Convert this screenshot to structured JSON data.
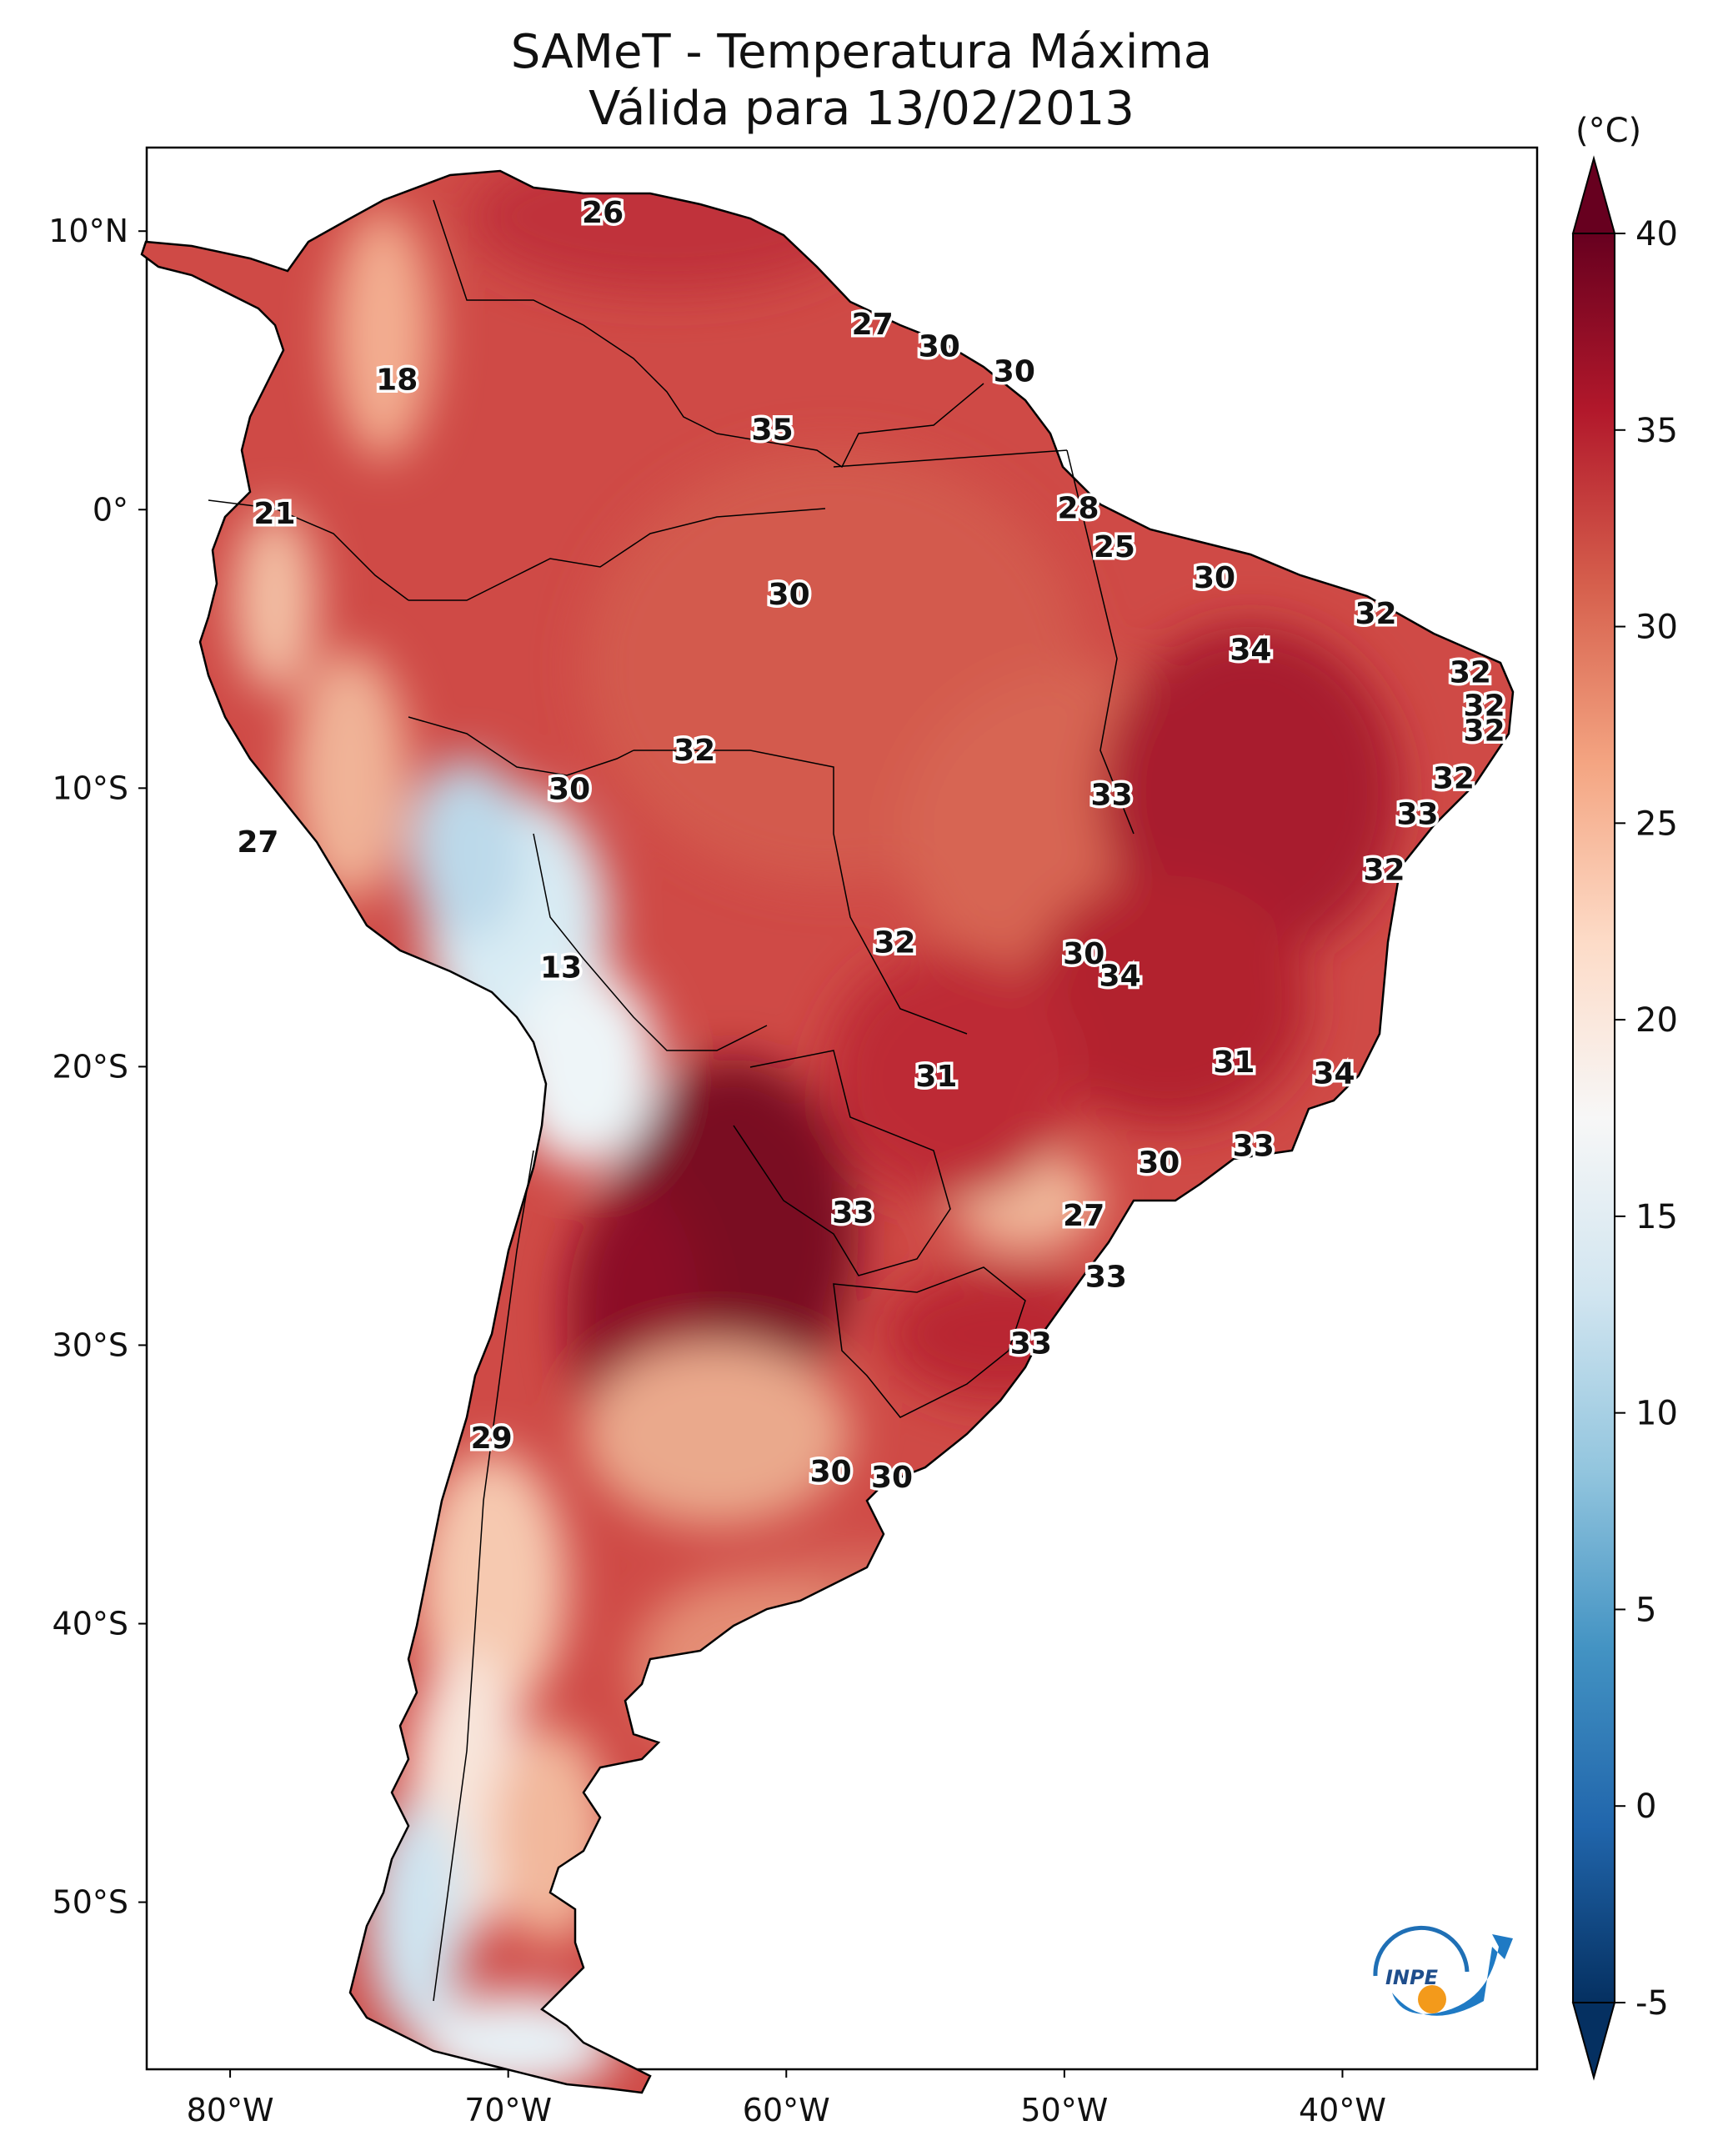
{
  "title": {
    "line1": "SAMeT - Temperatura Máxima",
    "line2": "Válida para 13/02/2013"
  },
  "colorbar": {
    "unit": "(°C)",
    "min": -5,
    "max": 40,
    "ticks": [
      "40",
      "35",
      "30",
      "25",
      "20",
      "15",
      "10",
      "5",
      "0",
      "-5"
    ],
    "colors": [
      "#67001f",
      "#b2182b",
      "#d6604d",
      "#f4a582",
      "#fddbc7",
      "#f7f7f7",
      "#d1e5f0",
      "#92c5de",
      "#4393c3",
      "#2166ac",
      "#053061"
    ]
  },
  "axes": {
    "lon_ticks": [
      "80°W",
      "70°W",
      "60°W",
      "50°W",
      "40°W"
    ],
    "lat_ticks": [
      "10°N",
      "0°",
      "10°S",
      "20°S",
      "30°S",
      "40°S",
      "50°S"
    ],
    "lon_range": [
      -83,
      -33
    ],
    "lat_range": [
      -56,
      13
    ]
  },
  "logo": {
    "text": "INPE",
    "icon": "inpe-logo"
  },
  "chart_data": {
    "type": "heatmap",
    "variable": "Temperatura Máxima",
    "unit": "°C",
    "labels": [
      {
        "lon": -66.6,
        "lat": 10.6,
        "value": "26"
      },
      {
        "lon": -74.0,
        "lat": 4.6,
        "value": "18"
      },
      {
        "lon": -78.4,
        "lat": -0.2,
        "value": "21"
      },
      {
        "lon": -56.9,
        "lat": 6.6,
        "value": "27"
      },
      {
        "lon": -54.5,
        "lat": 5.8,
        "value": "30"
      },
      {
        "lon": -51.8,
        "lat": 4.9,
        "value": "30"
      },
      {
        "lon": -60.5,
        "lat": 2.8,
        "value": "35"
      },
      {
        "lon": -49.5,
        "lat": 0.0,
        "value": "28"
      },
      {
        "lon": -48.2,
        "lat": -1.4,
        "value": "25"
      },
      {
        "lon": -44.6,
        "lat": -2.5,
        "value": "30"
      },
      {
        "lon": -59.9,
        "lat": -3.1,
        "value": "30"
      },
      {
        "lon": -38.8,
        "lat": -3.8,
        "value": "32"
      },
      {
        "lon": -43.3,
        "lat": -5.1,
        "value": "34"
      },
      {
        "lon": -35.4,
        "lat": -5.9,
        "value": "32"
      },
      {
        "lon": -34.9,
        "lat": -7.1,
        "value": "32"
      },
      {
        "lon": -34.9,
        "lat": -8.0,
        "value": "32"
      },
      {
        "lon": -36.0,
        "lat": -9.7,
        "value": "32"
      },
      {
        "lon": -37.3,
        "lat": -11.0,
        "value": "33"
      },
      {
        "lon": -63.3,
        "lat": -8.7,
        "value": "32"
      },
      {
        "lon": -67.8,
        "lat": -10.1,
        "value": "30"
      },
      {
        "lon": -48.3,
        "lat": -10.3,
        "value": "33"
      },
      {
        "lon": -79.0,
        "lat": -12.0,
        "value": "27"
      },
      {
        "lon": -38.5,
        "lat": -13.0,
        "value": "32"
      },
      {
        "lon": -68.1,
        "lat": -16.5,
        "value": "13"
      },
      {
        "lon": -56.1,
        "lat": -15.6,
        "value": "32"
      },
      {
        "lon": -49.3,
        "lat": -16.0,
        "value": "30"
      },
      {
        "lon": -48.0,
        "lat": -16.8,
        "value": "34"
      },
      {
        "lon": -54.6,
        "lat": -20.4,
        "value": "31"
      },
      {
        "lon": -43.9,
        "lat": -19.9,
        "value": "31"
      },
      {
        "lon": -40.3,
        "lat": -20.3,
        "value": "34"
      },
      {
        "lon": -43.2,
        "lat": -22.9,
        "value": "33"
      },
      {
        "lon": -46.6,
        "lat": -23.5,
        "value": "30"
      },
      {
        "lon": -57.6,
        "lat": -25.3,
        "value": "33"
      },
      {
        "lon": -49.3,
        "lat": -25.4,
        "value": "27"
      },
      {
        "lon": -48.5,
        "lat": -27.6,
        "value": "33"
      },
      {
        "lon": -51.2,
        "lat": -30.0,
        "value": "33"
      },
      {
        "lon": -70.6,
        "lat": -33.4,
        "value": "29"
      },
      {
        "lon": -58.4,
        "lat": -34.6,
        "value": "30"
      },
      {
        "lon": -56.2,
        "lat": -34.8,
        "value": "30"
      }
    ]
  }
}
